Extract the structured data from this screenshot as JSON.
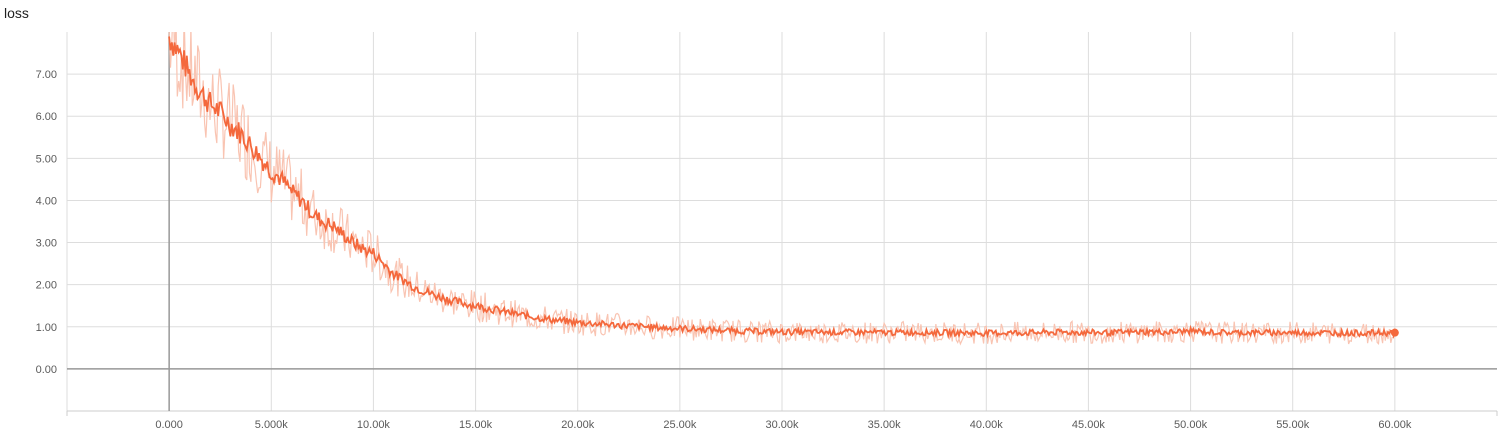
{
  "chart_data": {
    "type": "line",
    "title": "loss",
    "xlabel": "",
    "ylabel": "",
    "xlim": [
      -5000,
      65000
    ],
    "ylim": [
      -1.0,
      8.0
    ],
    "grid": true,
    "xticks": [
      0,
      5000,
      10000,
      15000,
      20000,
      25000,
      30000,
      35000,
      40000,
      45000,
      50000,
      55000,
      60000
    ],
    "xtick_labels": [
      "0.000",
      "5.000k",
      "10.00k",
      "15.00k",
      "20.00k",
      "25.00k",
      "30.00k",
      "35.00k",
      "40.00k",
      "45.00k",
      "50.00k",
      "55.00k",
      "60.00k"
    ],
    "yticks": [
      0,
      1,
      2,
      3,
      4,
      5,
      6,
      7
    ],
    "ytick_labels": [
      "0.00",
      "1.00",
      "2.00",
      "3.00",
      "4.00",
      "5.00",
      "6.00",
      "7.00"
    ],
    "series": [
      {
        "color": "#f4683c",
        "raw_color": "#f9c4b2",
        "x": [
          0,
          500,
          1000,
          1500,
          2000,
          2500,
          3000,
          3500,
          4000,
          4500,
          5000,
          5500,
          6000,
          6500,
          7000,
          7500,
          8000,
          8500,
          9000,
          9500,
          10000,
          10500,
          11000,
          12000,
          13000,
          14000,
          15000,
          16000,
          17000,
          18000,
          19000,
          20000,
          21000,
          22000,
          23000,
          24000,
          25000,
          26000,
          27000,
          28000,
          30000,
          32000,
          34000,
          35000,
          36000,
          38000,
          40000,
          42000,
          44000,
          46000,
          48000,
          49000,
          50000,
          51000,
          52000,
          54000,
          56000,
          58000,
          60000
        ],
        "values": [
          7.9,
          7.5,
          7.0,
          6.6,
          6.3,
          6.1,
          5.8,
          5.6,
          5.3,
          5.0,
          4.7,
          4.5,
          4.2,
          4.0,
          3.7,
          3.5,
          3.4,
          3.2,
          3.0,
          2.85,
          2.75,
          2.5,
          2.25,
          1.95,
          1.75,
          1.6,
          1.5,
          1.4,
          1.3,
          1.22,
          1.15,
          1.1,
          1.07,
          1.04,
          1.01,
          0.98,
          0.96,
          0.94,
          0.92,
          0.9,
          0.88,
          0.87,
          0.87,
          0.86,
          0.87,
          0.86,
          0.85,
          0.86,
          0.87,
          0.86,
          0.88,
          0.87,
          0.9,
          0.87,
          0.86,
          0.86,
          0.86,
          0.85,
          0.86
        ]
      }
    ]
  }
}
